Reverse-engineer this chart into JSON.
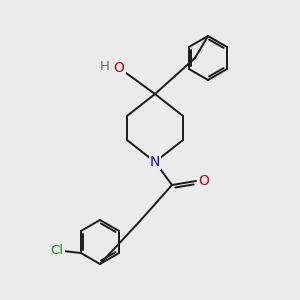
{
  "background_color": "#ebebeb",
  "bond_color": "#1a1a1a",
  "atom_colors": {
    "N": "#0000cc",
    "O": "#cc0000",
    "Cl": "#228B22",
    "H": "#607070"
  },
  "figsize": [
    3.0,
    3.0
  ],
  "dpi": 100
}
